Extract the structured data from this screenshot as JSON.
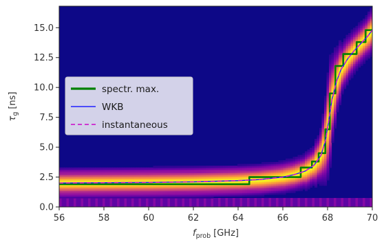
{
  "chart_data": {
    "type": "heatmap",
    "title": "",
    "xlabel_main": "f",
    "xlabel_sub": "prob",
    "xlabel_unit": "[GHz]",
    "ylabel_main": "τ",
    "ylabel_sub": "g",
    "ylabel_unit": "[ns]",
    "xlim": [
      56,
      70
    ],
    "ylim": [
      0,
      16.8
    ],
    "xticks": [
      56,
      58,
      60,
      62,
      64,
      66,
      68,
      70
    ],
    "xtick_labels": [
      "56",
      "58",
      "60",
      "62",
      "64",
      "66",
      "68",
      "70"
    ],
    "yticks": [
      0,
      2.5,
      5,
      7.5,
      10,
      12.5,
      15
    ],
    "ytick_labels": [
      "0.0",
      "2.5",
      "5.0",
      "7.5",
      "10.0",
      "12.5",
      "15.0"
    ],
    "grid": false,
    "legend_position": "center-left",
    "colormap": "plasma",
    "colors": {
      "background": "#0d0887",
      "spectral_max": "#008000",
      "wkb": "#1f1fff",
      "instantaneous": "#cc22cc"
    },
    "series": [
      {
        "name": "spectr. max.",
        "style": "solid-thick",
        "x": [
          56,
          64.5,
          64.5,
          66.8,
          66.8,
          67.3,
          67.3,
          67.6,
          67.6,
          67.9,
          67.9,
          68.1,
          68.1,
          68.35,
          68.35,
          68.7,
          68.7,
          69.3,
          69.3,
          69.7,
          69.7,
          70
        ],
        "y": [
          1.9,
          1.9,
          2.5,
          2.5,
          3.3,
          3.3,
          3.8,
          3.8,
          4.5,
          4.5,
          6.5,
          6.5,
          9.5,
          9.5,
          11.8,
          11.8,
          12.8,
          12.8,
          13.8,
          13.8,
          14.8,
          14.8
        ]
      },
      {
        "name": "WKB",
        "style": "solid-thin",
        "x": [
          56,
          60,
          62,
          64,
          65,
          66,
          66.5,
          67,
          67.4,
          67.7,
          67.9,
          68.05,
          68.2,
          68.4,
          68.6,
          68.9,
          69.2,
          69.5,
          69.8,
          70
        ],
        "y": [
          2.0,
          2.05,
          2.1,
          2.2,
          2.3,
          2.5,
          2.7,
          3.0,
          3.5,
          4.3,
          5.5,
          7.2,
          9.0,
          10.5,
          11.5,
          12.4,
          13.1,
          13.7,
          14.3,
          14.8
        ]
      },
      {
        "name": "instantaneous",
        "style": "dashed",
        "x": [
          56,
          60,
          62,
          64,
          65,
          66,
          66.5,
          67,
          67.4,
          67.7,
          67.9,
          68.05,
          68.2,
          68.4,
          68.6,
          68.9,
          69.2,
          69.5,
          69.8,
          70
        ],
        "y": [
          2.0,
          2.05,
          2.1,
          2.2,
          2.3,
          2.5,
          2.7,
          3.0,
          3.5,
          4.3,
          5.5,
          7.2,
          9.0,
          10.5,
          11.5,
          12.4,
          13.1,
          13.7,
          14.3,
          14.8
        ]
      }
    ]
  }
}
